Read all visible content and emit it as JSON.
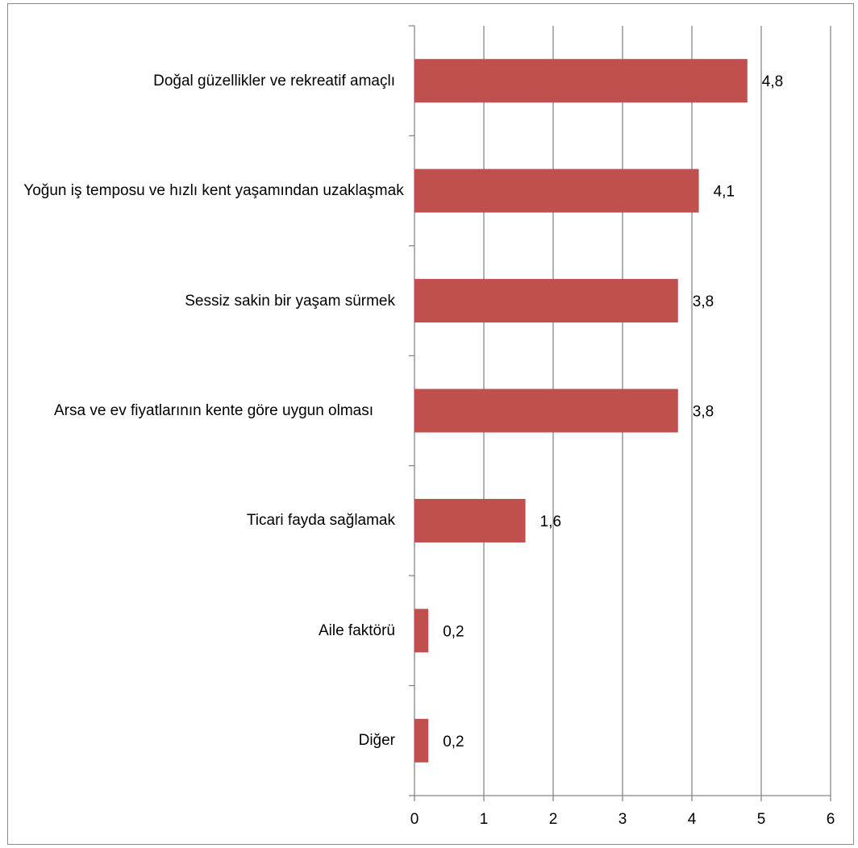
{
  "chart_data": {
    "type": "bar",
    "orientation": "horizontal",
    "categories": [
      "Doğal güzellikler ve rekreatif amaçlı",
      "Yoğun iş temposu ve hızlı kent yaşamından uzaklaşmak",
      "Sessiz sakin bir yaşam sürmek",
      "Arsa ve ev fiyatlarının kente göre uygun olması",
      "Ticari fayda sağlamak",
      "Aile faktörü",
      "Diğer"
    ],
    "values": [
      4.8,
      4.1,
      3.8,
      3.8,
      1.6,
      0.2,
      0.2
    ],
    "data_labels": [
      "4,8",
      "4,1",
      "3,8",
      "3,8",
      "1,6",
      "0,2",
      "0,2"
    ],
    "x_ticks": [
      "0",
      "1",
      "2",
      "3",
      "4",
      "5",
      "6"
    ],
    "xlim": [
      0,
      6
    ],
    "title": "",
    "xlabel": "",
    "ylabel": "",
    "grid": "vertical",
    "bar_color": "#c0504d",
    "grid_color": "#868686"
  }
}
